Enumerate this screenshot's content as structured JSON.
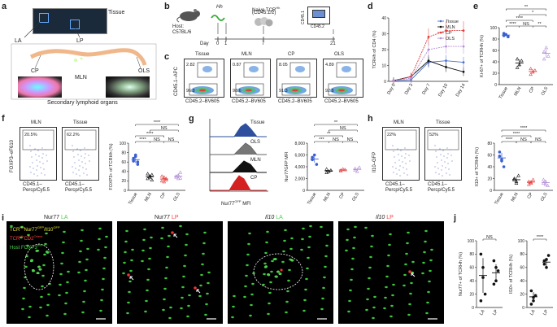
{
  "panels": {
    "a": "a",
    "b": "b",
    "c": "c",
    "d": "d",
    "e": "e",
    "f": "f",
    "g": "g",
    "h": "h",
    "i": "i",
    "j": "j"
  },
  "panel_a": {
    "tissue": "Tissue",
    "la": "LA",
    "lp": "LP",
    "cp": "CP",
    "mln": "MLN",
    "ols": "OLS",
    "caption": "Secondary lymphoid organs"
  },
  "panel_b": {
    "hh": "Hh",
    "tcr": "Naive TCR",
    "tcr_sup": "Hh",
    "cd": "(CD45.1/2)",
    "host": "Host:",
    "strain": "C57BL/6",
    "day": "Day",
    "d0": "0",
    "d1": "1",
    "d7": "7",
    "d21": "21",
    "cd451": "CD45.1",
    "cd452": "CD45.2"
  },
  "panel_c": {
    "titles": [
      "Tissue",
      "MLN",
      "CP",
      "OLS"
    ],
    "top": [
      "2.82",
      "0.87",
      "8.05",
      "4.89"
    ],
    "bottom": [
      "96.8",
      "98.6",
      "91.3",
      "92.8"
    ],
    "ylabel": "CD45.1–APC",
    "xlabel": "CD45.2–BV605"
  },
  "panel_f": {
    "titles": [
      "MLN",
      "Tissue"
    ],
    "pct": [
      "20.5%",
      "62.2%"
    ],
    "ylabel": "FOXP3–eF610",
    "xlabel": "CD45.1–",
    "xlabel2": "Percp/Cy5.5"
  },
  "panel_g": {
    "hist_labels": [
      "Tissue",
      "OLS",
      "MLN",
      "CP"
    ],
    "xlabel": "Nur77",
    "xlabel_sup": "GFP",
    "xlabel_end": " MFI"
  },
  "panel_h": {
    "titles": [
      "MLN",
      "Tissue"
    ],
    "pct": [
      "22%",
      "52%"
    ],
    "ylabel": "Il10–GFP",
    "xlabel": "CD45.1–",
    "xlabel2": "Percp/Cy5.5"
  },
  "panel_i": {
    "titles": [
      {
        "a": "Nur77 ",
        "b": "LA",
        "ca": "#ffffff",
        "cb": "#4fd14f"
      },
      {
        "a": "Nur77 ",
        "b": "LP",
        "ca": "#ffffff",
        "cb": "#ff4040"
      },
      {
        "a": "Il10 ",
        "b": "LA",
        "ca": "#ffffff",
        "cb": "#4fd14f"
      },
      {
        "a": "Il10 ",
        "b": "LP",
        "ca": "#ffffff",
        "cb": "#ff4040"
      }
    ],
    "legend": [
      "TCR",
      "Hh",
      "Nur77",
      "GFP",
      "/Il10",
      "GFP",
      "TCR",
      "Hh",
      "CD2",
      "Orient",
      "Host FOXP3",
      "RFP"
    ]
  },
  "chart_data": [
    {
      "type": "line",
      "panel": "d",
      "categories": [
        "Day 0",
        "Day 3",
        "Day 7",
        "Day 10",
        "Day 14"
      ],
      "ylabel": "TCRHh of CD4 (%)",
      "ylim": [
        0,
        40
      ],
      "yticks": [
        "0",
        "10",
        "20",
        "30",
        "40"
      ],
      "series": [
        {
          "name": "Tissue",
          "color": "#4a6fd1",
          "values": [
            0.5,
            1,
            12,
            13,
            12
          ]
        },
        {
          "name": "MLN",
          "color": "#111111",
          "values": [
            0.5,
            3,
            13,
            9,
            6
          ]
        },
        {
          "name": "CP",
          "color": "#e23c3c",
          "values": [
            0.5,
            3,
            28,
            32,
            32
          ]
        },
        {
          "name": "OLS",
          "color": "#b38fd6",
          "values": [
            0.5,
            2,
            20,
            22,
            22
          ]
        }
      ]
    },
    {
      "type": "scatter",
      "panel": "e",
      "categories": [
        "Tissue",
        "MLN",
        "CP",
        "OLS"
      ],
      "ylabel": "Ki-67+ of TCRHh (%)",
      "ylim": [
        0,
        100
      ],
      "yticks": [
        "0",
        "20",
        "40",
        "60",
        "80",
        "100"
      ],
      "colors": [
        "#3a5fd1",
        "#111111",
        "#e23c3c",
        "#b38fd6"
      ],
      "values": [
        [
          86,
          88,
          84,
          90
        ],
        [
          45,
          35,
          42,
          30
        ],
        [
          28,
          22,
          25,
          18
        ],
        [
          58,
          65,
          50,
          45
        ]
      ],
      "means": [
        87,
        38,
        23,
        55
      ],
      "sig": [
        {
          "from": 0,
          "to": 1,
          "label": "****"
        },
        {
          "from": 1,
          "to": 2,
          "label": "NS"
        },
        {
          "from": 2,
          "to": 3,
          "label": "**"
        },
        {
          "from": 0,
          "to": 2,
          "label": "****"
        },
        {
          "from": 1,
          "to": 3,
          "label": "*"
        },
        {
          "from": 0,
          "to": 3,
          "label": "**"
        }
      ]
    },
    {
      "type": "scatter",
      "panel": "f",
      "categories": [
        "Tissue",
        "MLN",
        "CP",
        "OLS"
      ],
      "ylabel": "FOXP3+ of TCRHh (%)",
      "ylim": [
        0,
        100
      ],
      "yticks": [
        "0",
        "20",
        "40",
        "60",
        "80",
        "100"
      ],
      "colors": [
        "#3a5fd1",
        "#111111",
        "#e23c3c",
        "#b38fd6"
      ],
      "values": [
        [
          68,
          72,
          55,
          62,
          75,
          60
        ],
        [
          25,
          30,
          22,
          35,
          28,
          33
        ],
        [
          20,
          28,
          25,
          30,
          18,
          22
        ],
        [
          30,
          25,
          38,
          28,
          32,
          26
        ]
      ],
      "means": [
        65,
        29,
        24,
        30
      ],
      "sig": [
        {
          "from": 0,
          "to": 1,
          "label": "****"
        },
        {
          "from": 1,
          "to": 2,
          "label": "NS"
        },
        {
          "from": 2,
          "to": 3,
          "label": "NS"
        },
        {
          "from": 0,
          "to": 2,
          "label": "****"
        },
        {
          "from": 1,
          "to": 3,
          "label": "NS"
        },
        {
          "from": 0,
          "to": 3,
          "label": "****"
        }
      ]
    },
    {
      "type": "scatter",
      "panel": "g",
      "categories": [
        "Tissue",
        "MLN",
        "CP",
        "OLS"
      ],
      "ylabel": "Nur77GFP MFI",
      "ylim": [
        0,
        8000
      ],
      "yticks": [
        "0",
        "2,000",
        "4,000",
        "6,000",
        "8,000"
      ],
      "colors": [
        "#3a5fd1",
        "#111111",
        "#e23c3c",
        "#b38fd6"
      ],
      "values": [
        [
          5200,
          6000,
          4400,
          5600
        ],
        [
          3600,
          3200,
          3400,
          3000
        ],
        [
          3400,
          3600,
          3500,
          3300
        ],
        [
          3700,
          3200,
          3900,
          3400
        ]
      ],
      "means": [
        5300,
        3300,
        3450,
        3550
      ],
      "sig": [
        {
          "from": 0,
          "to": 1,
          "label": "***"
        },
        {
          "from": 1,
          "to": 2,
          "label": "NS"
        },
        {
          "from": 2,
          "to": 3,
          "label": "NS"
        },
        {
          "from": 0,
          "to": 2,
          "label": "**"
        },
        {
          "from": 1,
          "to": 3,
          "label": "NS"
        },
        {
          "from": 0,
          "to": 3,
          "label": "**"
        }
      ]
    },
    {
      "type": "scatter",
      "panel": "h",
      "categories": [
        "Tissue",
        "MLN",
        "CP",
        "OLS"
      ],
      "ylabel": "Il10+ of TCRHh (%)",
      "ylim": [
        0,
        80
      ],
      "yticks": [
        "0",
        "20",
        "40",
        "60",
        "80"
      ],
      "colors": [
        "#3a5fd1",
        "#111111",
        "#e23c3c",
        "#b38fd6"
      ],
      "values": [
        [
          58,
          52,
          40,
          65,
          50
        ],
        [
          20,
          15,
          25,
          18,
          12
        ],
        [
          15,
          12,
          18,
          10,
          14
        ],
        [
          12,
          15,
          8,
          18,
          10
        ]
      ],
      "means": [
        55,
        18,
        14,
        13
      ],
      "sig": [
        {
          "from": 0,
          "to": 1,
          "label": "****"
        },
        {
          "from": 1,
          "to": 2,
          "label": "NS"
        },
        {
          "from": 2,
          "to": 3,
          "label": "NS"
        },
        {
          "from": 0,
          "to": 2,
          "label": "****"
        },
        {
          "from": 0,
          "to": 3,
          "label": "****"
        }
      ]
    },
    {
      "type": "scatter",
      "panel": "j1",
      "categories": [
        "LA",
        "LP"
      ],
      "ylabel": "Nur77+ of TCRHh (%)",
      "ylim": [
        0,
        100
      ],
      "yticks": [
        "0",
        "20",
        "40",
        "60",
        "80",
        "100"
      ],
      "colors": [
        "#111111",
        "#111111"
      ],
      "values": [
        [
          80,
          45,
          20,
          10,
          60
        ],
        [
          70,
          40,
          55,
          35,
          60
        ]
      ],
      "means": [
        48,
        52
      ],
      "sig": [
        {
          "from": 0,
          "to": 1,
          "label": "NS"
        }
      ]
    },
    {
      "type": "scatter",
      "panel": "j2",
      "categories": [
        "LA",
        "LP"
      ],
      "ylabel": "Il10+ of TCRHh (%)",
      "ylim": [
        0,
        100
      ],
      "yticks": [
        "0",
        "20",
        "40",
        "60",
        "80",
        "100"
      ],
      "colors": [
        "#111111",
        "#111111"
      ],
      "values": [
        [
          25,
          10,
          18,
          5,
          15
        ],
        [
          70,
          60,
          78,
          65,
          72
        ]
      ],
      "means": [
        16,
        68
      ],
      "sig": [
        {
          "from": 0,
          "to": 1,
          "label": "****"
        }
      ]
    }
  ]
}
